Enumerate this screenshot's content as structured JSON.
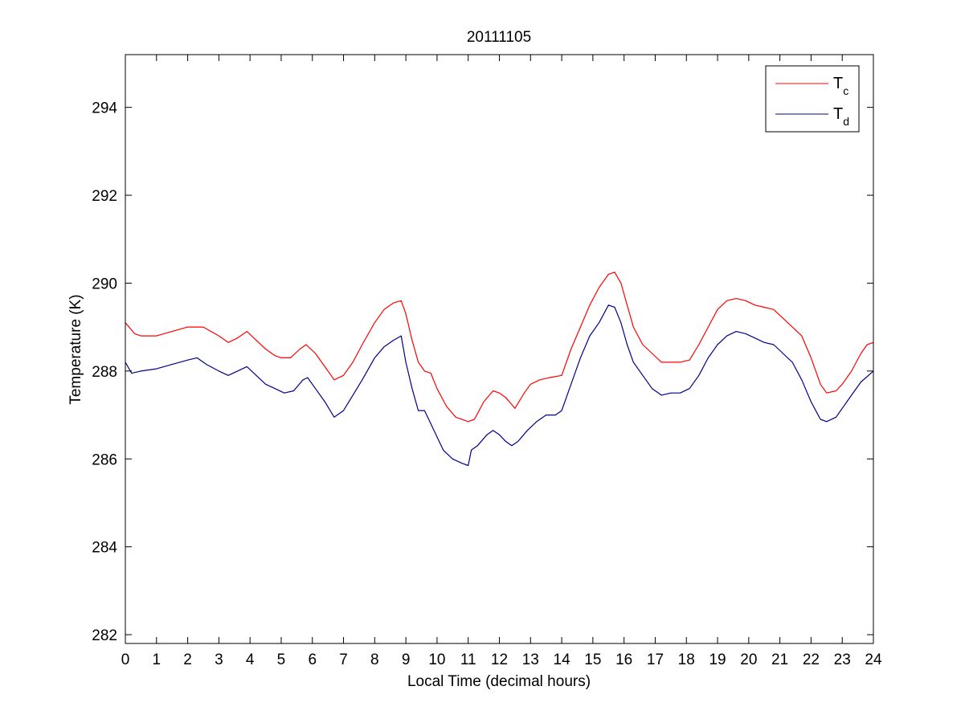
{
  "chart_data": {
    "type": "line",
    "title": "20111105",
    "xlabel": "Local Time (decimal hours)",
    "ylabel": "Temperature (K)",
    "xlim": [
      0,
      24
    ],
    "ylim": [
      281.8,
      295.2
    ],
    "xticks": [
      0,
      1,
      2,
      3,
      4,
      5,
      6,
      7,
      8,
      9,
      10,
      11,
      12,
      13,
      14,
      15,
      16,
      17,
      18,
      19,
      20,
      21,
      22,
      23,
      24
    ],
    "yticks": [
      282,
      284,
      286,
      288,
      290,
      292,
      294
    ],
    "grid": false,
    "legend": {
      "placement": "top-right"
    },
    "series": [
      {
        "name": "T",
        "name_sub": "c",
        "color": "#ff0000",
        "x": [
          0,
          0.3,
          0.5,
          1.0,
          1.5,
          2.0,
          2.5,
          3.0,
          3.3,
          3.6,
          3.9,
          4.2,
          4.5,
          4.8,
          5.0,
          5.3,
          5.6,
          5.8,
          6.1,
          6.4,
          6.7,
          7.0,
          7.3,
          7.6,
          8.0,
          8.3,
          8.6,
          8.85,
          9.0,
          9.2,
          9.4,
          9.6,
          9.8,
          10.0,
          10.3,
          10.6,
          11.0,
          11.2,
          11.5,
          11.8,
          12.0,
          12.2,
          12.5,
          12.8,
          13.0,
          13.3,
          13.6,
          14.0,
          14.3,
          14.6,
          14.9,
          15.2,
          15.5,
          15.7,
          15.9,
          16.1,
          16.3,
          16.6,
          16.9,
          17.2,
          17.5,
          17.8,
          18.1,
          18.4,
          18.7,
          19.0,
          19.3,
          19.6,
          19.9,
          20.2,
          20.5,
          20.8,
          21.1,
          21.4,
          21.7,
          22.0,
          22.3,
          22.5,
          22.8,
          23.0,
          23.3,
          23.6,
          23.8,
          24.0
        ],
        "values": [
          289.1,
          288.85,
          288.8,
          288.8,
          288.9,
          289.0,
          289.0,
          288.8,
          288.65,
          288.75,
          288.9,
          288.7,
          288.5,
          288.35,
          288.3,
          288.3,
          288.5,
          288.6,
          288.4,
          288.1,
          287.8,
          287.9,
          288.2,
          288.6,
          289.1,
          289.4,
          289.55,
          289.6,
          289.3,
          288.7,
          288.2,
          288.0,
          287.95,
          287.6,
          287.2,
          286.95,
          286.85,
          286.9,
          287.3,
          287.55,
          287.5,
          287.4,
          287.15,
          287.5,
          287.7,
          287.8,
          287.85,
          287.9,
          288.5,
          289.0,
          289.5,
          289.9,
          290.2,
          290.25,
          290.0,
          289.5,
          289.0,
          288.6,
          288.4,
          288.2,
          288.2,
          288.2,
          288.25,
          288.6,
          289.0,
          289.4,
          289.6,
          289.65,
          289.6,
          289.5,
          289.45,
          289.4,
          289.2,
          289.0,
          288.8,
          288.3,
          287.7,
          287.5,
          287.55,
          287.7,
          288.0,
          288.4,
          288.6,
          288.65
        ]
      },
      {
        "name": "T",
        "name_sub": "d",
        "color": "#00008b",
        "x": [
          0,
          0.2,
          0.5,
          1.0,
          1.5,
          2.0,
          2.3,
          2.6,
          3.0,
          3.3,
          3.6,
          3.9,
          4.2,
          4.5,
          4.8,
          5.1,
          5.4,
          5.7,
          5.85,
          6.1,
          6.4,
          6.7,
          7.0,
          7.3,
          7.6,
          8.0,
          8.3,
          8.6,
          8.85,
          9.0,
          9.2,
          9.4,
          9.6,
          9.8,
          10.0,
          10.2,
          10.5,
          10.8,
          11.0,
          11.1,
          11.3,
          11.6,
          11.8,
          12.0,
          12.2,
          12.4,
          12.6,
          12.9,
          13.2,
          13.5,
          13.8,
          14.0,
          14.3,
          14.6,
          14.9,
          15.2,
          15.5,
          15.7,
          15.9,
          16.1,
          16.3,
          16.6,
          16.9,
          17.2,
          17.5,
          17.8,
          18.1,
          18.4,
          18.7,
          19.0,
          19.3,
          19.6,
          19.9,
          20.2,
          20.5,
          20.8,
          21.1,
          21.4,
          21.7,
          22.0,
          22.3,
          22.5,
          22.8,
          23.0,
          23.3,
          23.6,
          24.0
        ],
        "values": [
          288.2,
          287.95,
          288.0,
          288.05,
          288.15,
          288.25,
          288.3,
          288.15,
          288.0,
          287.9,
          288.0,
          288.1,
          287.9,
          287.7,
          287.6,
          287.5,
          287.55,
          287.8,
          287.85,
          287.6,
          287.3,
          286.95,
          287.1,
          287.45,
          287.8,
          288.3,
          288.55,
          288.7,
          288.8,
          288.2,
          287.6,
          287.1,
          287.1,
          286.8,
          286.5,
          286.2,
          286.0,
          285.9,
          285.85,
          286.2,
          286.3,
          286.55,
          286.65,
          286.55,
          286.4,
          286.3,
          286.4,
          286.65,
          286.85,
          287.0,
          287.0,
          287.1,
          287.7,
          288.3,
          288.8,
          289.1,
          289.5,
          289.45,
          289.1,
          288.6,
          288.2,
          287.9,
          287.6,
          287.45,
          287.5,
          287.5,
          287.6,
          287.9,
          288.3,
          288.6,
          288.8,
          288.9,
          288.85,
          288.75,
          288.65,
          288.6,
          288.4,
          288.2,
          287.8,
          287.3,
          286.9,
          286.85,
          286.95,
          287.15,
          287.45,
          287.75,
          288.0
        ]
      }
    ]
  }
}
